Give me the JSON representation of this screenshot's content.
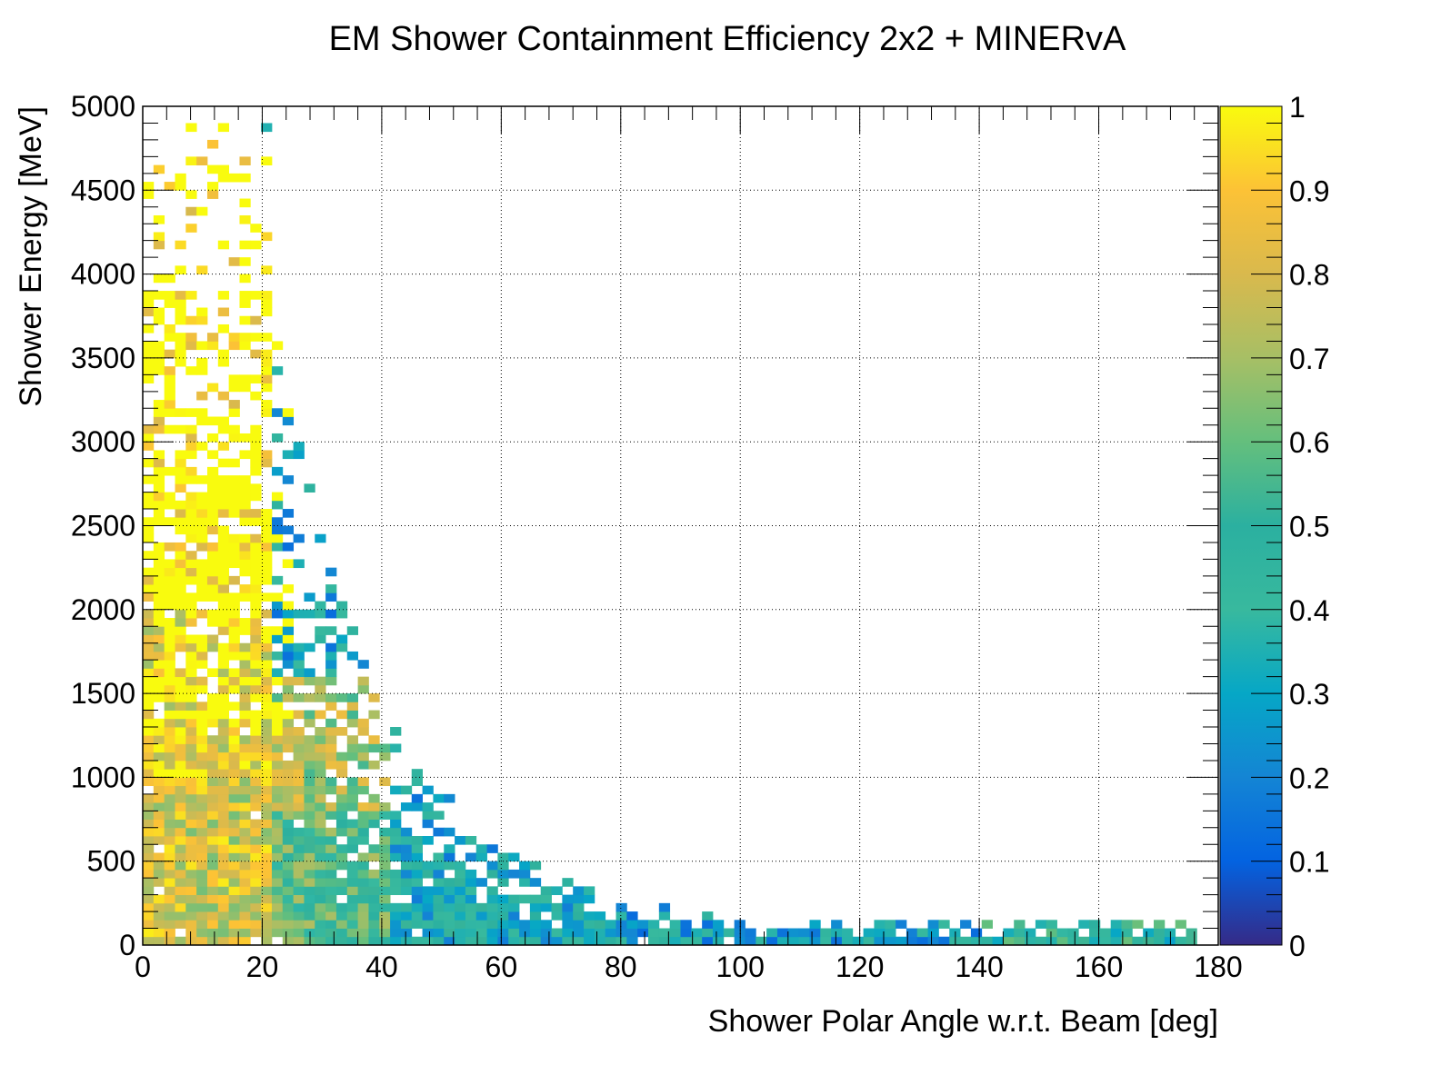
{
  "chart_data": {
    "type": "heatmap",
    "title": "EM Shower Containment Efficiency 2x2 + MINERvA",
    "xlabel": "Shower Polar Angle w.r.t. Beam [deg]",
    "ylabel": "Shower Energy [MeV]",
    "xlim": [
      0,
      180
    ],
    "ylim": [
      0,
      5000
    ],
    "zlim": [
      0,
      1
    ],
    "x_ticks": [
      "0",
      "20",
      "40",
      "60",
      "80",
      "100",
      "120",
      "140",
      "160",
      "180"
    ],
    "y_ticks": [
      "0",
      "500",
      "1000",
      "1500",
      "2000",
      "2500",
      "3000",
      "3500",
      "4000",
      "4500",
      "5000"
    ],
    "z_ticks": [
      "0",
      "0.1",
      "0.2",
      "0.3",
      "0.4",
      "0.5",
      "0.6",
      "0.7",
      "0.8",
      "0.9",
      "1"
    ],
    "grid": true,
    "palette": "Parula",
    "bin_width_x_deg": 1.8,
    "bin_width_y_mev": 50,
    "region_summary": [
      {
        "angle_range_deg": [
          0,
          20
        ],
        "energy_range_mev": [
          0,
          1000
        ],
        "efficiency": 0.8
      },
      {
        "angle_range_deg": [
          0,
          20
        ],
        "energy_range_mev": [
          1000,
          2000
        ],
        "efficiency": 0.85
      },
      {
        "angle_range_deg": [
          0,
          20
        ],
        "energy_range_mev": [
          2000,
          4800
        ],
        "efficiency": 0.97
      },
      {
        "angle_range_deg": [
          20,
          40
        ],
        "energy_range_mev": [
          0,
          800
        ],
        "efficiency": 0.55
      },
      {
        "angle_range_deg": [
          20,
          40
        ],
        "energy_range_mev": [
          800,
          1600
        ],
        "efficiency": 0.7
      },
      {
        "angle_range_deg": [
          40,
          80
        ],
        "energy_range_mev": [
          0,
          500
        ],
        "efficiency": 0.35
      },
      {
        "angle_range_deg": [
          80,
          140
        ],
        "energy_range_mev": [
          0,
          300
        ],
        "efficiency": 0.3
      },
      {
        "angle_range_deg": [
          140,
          175
        ],
        "energy_range_mev": [
          0,
          200
        ],
        "efficiency": 0.45
      }
    ]
  }
}
